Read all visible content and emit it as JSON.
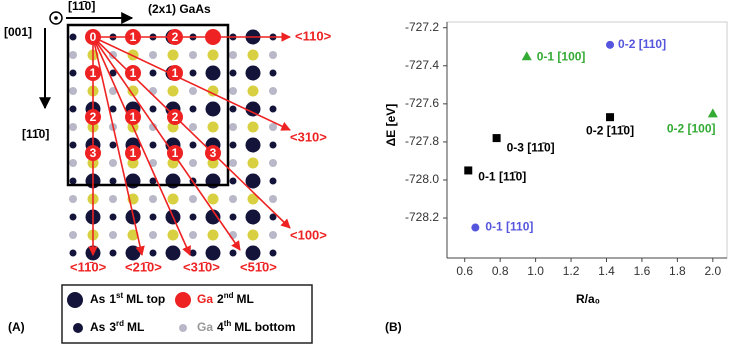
{
  "diagram": {
    "panel_label": "(A)",
    "title": "(2x1) GaAs",
    "direction_top": "[11̄0]",
    "direction_normal": "[001]",
    "direction_left": "[11̄0]",
    "arrow_labels": [
      "<110>",
      "<310>",
      "<100>",
      "<11̄0>",
      "<21̄0>",
      "<31̄0>",
      "<51̄0>"
    ],
    "atom_numbers": [
      "0",
      "1",
      "2",
      "1",
      "1",
      "1",
      "2",
      "1",
      "2",
      "3",
      "1",
      "1",
      "3"
    ],
    "legend": [
      {
        "element": "As",
        "number": "1",
        "suffix": "st",
        "rest": "ML top"
      },
      {
        "element": "Ga",
        "number": "2",
        "suffix": "nd",
        "rest": "ML"
      },
      {
        "element": "As",
        "number": "3",
        "suffix": "rd",
        "rest": "ML"
      },
      {
        "element": "Ga",
        "number": "4",
        "suffix": "th",
        "rest": "ML bottom"
      }
    ]
  },
  "chart_data": {
    "type": "scatter",
    "panel_label": "(B)",
    "x_label": "R/a₀",
    "y_label": "ΔE [eV]",
    "xlim": [
      0.5,
      2.08
    ],
    "ylim": [
      -728.41,
      -727.17
    ],
    "xticks": [
      0.6,
      0.8,
      {
        "value": 1,
        "label": "1.0"
      },
      1.2,
      1.4,
      1.6,
      1.8,
      {
        "value": 2,
        "label": "2.0"
      }
    ],
    "yticks": [
      -727.2,
      -727.4,
      -727.6,
      -727.8,
      {
        "value": -728,
        "label": "-728.0"
      },
      -728.2
    ],
    "series": [
      {
        "color": "#000000",
        "marker": "square",
        "x": [
          1.42,
          0.78,
          0.62
        ],
        "values": [
          -727.67,
          -727.78,
          -727.95
        ],
        "labels": [
          "0-2 [11̄0]",
          "0-3 [11̄0]",
          "0-1 [11̄0]"
        ]
      },
      {
        "color": "#5555dd",
        "marker": "circle",
        "x": [
          1.42,
          0.66
        ],
        "values": [
          -727.29,
          -728.25
        ],
        "labels": [
          "0-2 [110]",
          "0-1 [110]"
        ]
      },
      {
        "color": "#33aa33",
        "marker": "triangle",
        "x": [
          0.95,
          2.0
        ],
        "values": [
          -727.35,
          -727.65
        ],
        "labels": [
          "0-1 [100]",
          "0-2 [100]"
        ]
      }
    ]
  }
}
